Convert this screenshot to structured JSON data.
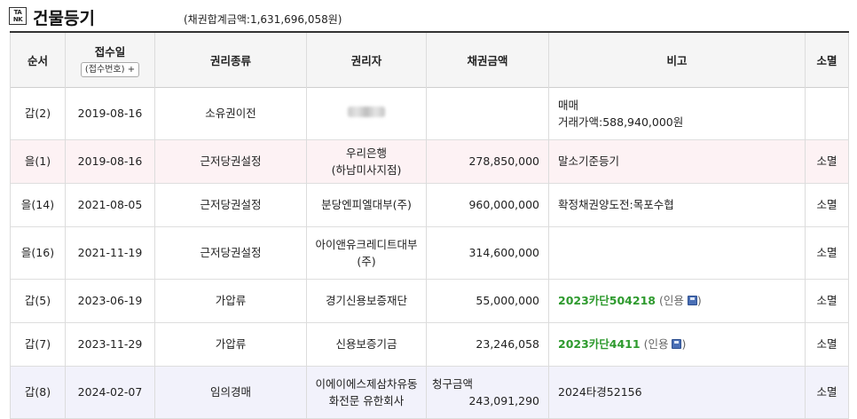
{
  "header": {
    "logo_top": "TA",
    "logo_bottom": "NK",
    "title": "건물등기",
    "total": "(채권합계금액:1,631,696,058원)"
  },
  "columns": {
    "order": "순서",
    "date": "접수일",
    "receipt_button": "(접수번호) +",
    "right_type": "권리종류",
    "holder": "권리자",
    "amount": "채권금액",
    "note": "비고",
    "extinct": "소멸"
  },
  "rows": [
    {
      "order": "갑(2)",
      "date": "2019-08-16",
      "right_type": "소유권이전",
      "holder": "",
      "amount": "",
      "note_line1": "매매",
      "note_line2": "거래가액:588,940,000원",
      "extinct": ""
    },
    {
      "order": "을(1)",
      "date": "2019-08-16",
      "right_type": "근저당권설정",
      "holder_line1": "우리은행",
      "holder_line2": "(하남미사지점)",
      "amount": "278,850,000",
      "note": "말소기준등기",
      "extinct": "소멸"
    },
    {
      "order": "을(14)",
      "date": "2021-08-05",
      "right_type": "근저당권설정",
      "holder": "분당엔피엘대부(주)",
      "amount": "960,000,000",
      "note": "확정채권양도전:목포수협",
      "extinct": "소멸"
    },
    {
      "order": "을(16)",
      "date": "2021-11-19",
      "right_type": "근저당권설정",
      "holder_line1": "아이앤유크레디트대부",
      "holder_line2": "(주)",
      "amount": "314,600,000",
      "note": "",
      "extinct": "소멸"
    },
    {
      "order": "갑(5)",
      "date": "2023-06-19",
      "right_type": "가압류",
      "holder": "경기신용보증재단",
      "amount": "55,000,000",
      "case_no": "2023카단504218",
      "cite": "(인용",
      "cite_close": ")",
      "extinct": "소멸"
    },
    {
      "order": "갑(7)",
      "date": "2023-11-29",
      "right_type": "가압류",
      "holder": "신용보증기금",
      "amount": "23,246,058",
      "case_no": "2023카단4411",
      "cite": "(인용",
      "cite_close": ")",
      "extinct": "소멸"
    },
    {
      "order": "갑(8)",
      "date": "2024-02-07",
      "right_type": "임의경매",
      "holder_line1": "이에이에스제삼차유동",
      "holder_line2": "화전문 유한회사",
      "amount_label": "청구금액",
      "amount": "243,091,290",
      "note": "2024타경52156",
      "extinct": "소멸"
    }
  ]
}
